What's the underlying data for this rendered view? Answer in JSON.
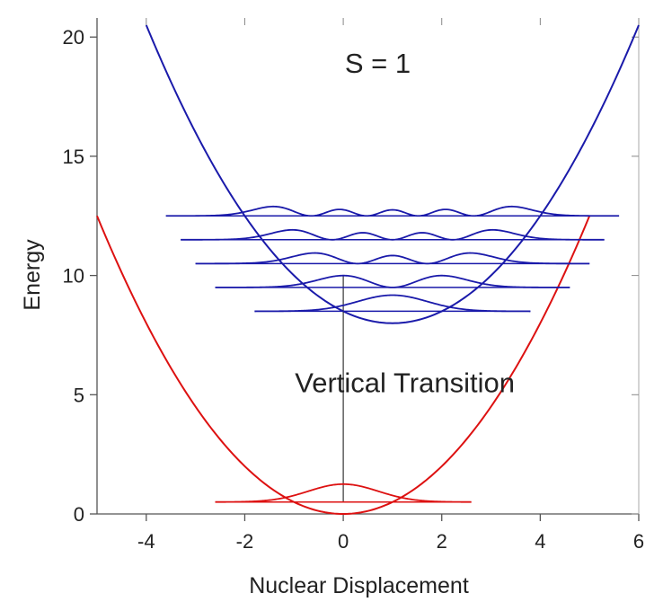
{
  "chart_data": {
    "type": "line",
    "title": "",
    "xlabel": "Nuclear Displacement",
    "ylabel": "Energy",
    "xlim": [
      -5,
      6
    ],
    "ylim": [
      0,
      20
    ],
    "xticks": [
      -4,
      -2,
      0,
      2,
      4,
      6
    ],
    "yticks": [
      0,
      5,
      10,
      15,
      20
    ],
    "grid": false,
    "annotations": [
      {
        "text": "S = 1",
        "x": 0.7,
        "y": 18.5
      },
      {
        "text": "Vertical Transition",
        "x": 1.25,
        "y": 5.1
      }
    ],
    "series": [
      {
        "key": "lower_potential",
        "color": "#dd1111",
        "equation": "E = 0.5*x^2",
        "x_range": [
          -5,
          5
        ]
      },
      {
        "key": "upper_potential",
        "color": "#1a1aaa",
        "equation": "E = 0.5*(x-1)^2 + 8",
        "x_range": [
          -4,
          6
        ]
      },
      {
        "key": "vertical_transition",
        "color": "#222222",
        "x": [
          0,
          0
        ],
        "y": [
          0.5,
          10
        ]
      }
    ],
    "ground_state": {
      "color": "#dd1111",
      "center": 0,
      "energy": 0.5,
      "amplitude": 0.75,
      "x_range": [
        -2.6,
        2.6
      ]
    },
    "excited_states": {
      "color": "#1a1aaa",
      "center": 1,
      "amplitude": 0.75,
      "levels": [
        {
          "v": 0,
          "energy": 8.5,
          "x_range": [
            -1.8,
            3.8
          ]
        },
        {
          "v": 1,
          "energy": 9.5,
          "x_range": [
            -2.6,
            4.6
          ]
        },
        {
          "v": 2,
          "energy": 10.5,
          "x_range": [
            -3.0,
            5.0
          ]
        },
        {
          "v": 3,
          "energy": 11.5,
          "x_range": [
            -3.3,
            5.3
          ]
        },
        {
          "v": 4,
          "energy": 12.5,
          "x_range": [
            -3.6,
            5.6
          ]
        }
      ]
    }
  }
}
